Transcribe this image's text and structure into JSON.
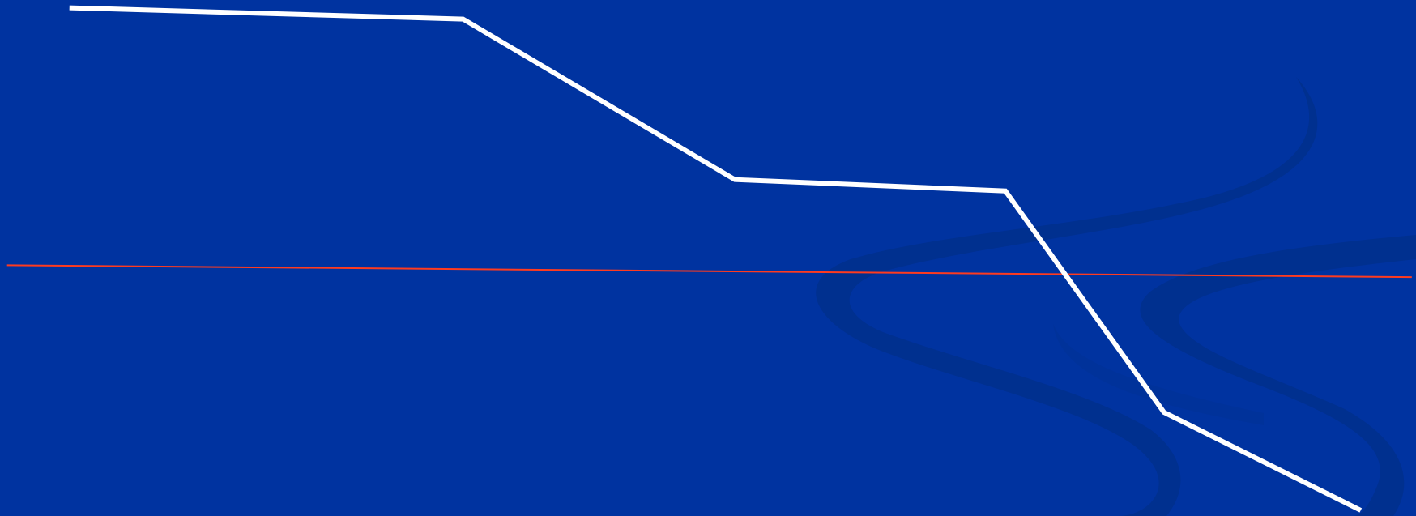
{
  "colors": {
    "background": "#0033a0",
    "swirl": "#00308f",
    "swirl_faint": "#00329a",
    "main_line": "#ffffff",
    "reference_line": "#ff3b1f"
  },
  "chart_data": {
    "type": "line",
    "title": "",
    "xlabel": "",
    "ylabel": "",
    "grid": false,
    "legend": "none",
    "xlim": [
      0,
      100
    ],
    "ylim": [
      0,
      100
    ],
    "series": [
      {
        "role": "main",
        "x": [
          4.9,
          32.7,
          51.9,
          71.0,
          82.2,
          96.1
        ],
        "y": [
          98.5,
          96.3,
          65.2,
          63.0,
          20.1,
          1.1
        ]
      },
      {
        "role": "reference",
        "x": [
          0.5,
          99.7
        ],
        "y": [
          48.6,
          46.3
        ]
      }
    ]
  }
}
